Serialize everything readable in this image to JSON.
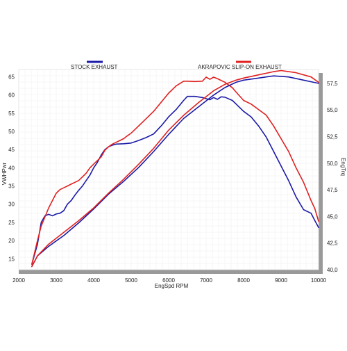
{
  "chart_data": {
    "type": "line",
    "legend_placement": "top",
    "grid": true,
    "colors": {
      "stock": "#1a1aa8",
      "akrapovic": "#e02020",
      "plot_border": "#999999",
      "grid": "#eeeeee"
    },
    "xlabel": "EngSpd  RPM",
    "ylabel_left": "VWHPwr",
    "ylabel_right": "EngTrq",
    "xlim": [
      2000,
      10000
    ],
    "ylim_left": [
      12,
      67
    ],
    "ylim_right": [
      40,
      58.8
    ],
    "x_ticks": [
      {
        "value": 2000,
        "label": "2000"
      },
      {
        "value": 3000,
        "label": "3000"
      },
      {
        "value": 4000,
        "label": "4000"
      },
      {
        "value": 5000,
        "label": "5000"
      },
      {
        "value": 6000,
        "label": "6000"
      },
      {
        "value": 7000,
        "label": "7000"
      },
      {
        "value": 8000,
        "label": "8000"
      },
      {
        "value": 9000,
        "label": "9000"
      },
      {
        "value": 10000,
        "label": "10000"
      }
    ],
    "y_left_ticks": [
      {
        "value": 15,
        "label": "15"
      },
      {
        "value": 20,
        "label": "20"
      },
      {
        "value": 25,
        "label": "25"
      },
      {
        "value": 30,
        "label": "30"
      },
      {
        "value": 35,
        "label": "35"
      },
      {
        "value": 40,
        "label": "40"
      },
      {
        "value": 45,
        "label": "45"
      },
      {
        "value": 50,
        "label": "50"
      },
      {
        "value": 55,
        "label": "55"
      },
      {
        "value": 60,
        "label": "60"
      },
      {
        "value": 65,
        "label": "65"
      }
    ],
    "y_right_ticks": [
      {
        "value": 40.0,
        "label": "40,0"
      },
      {
        "value": 42.5,
        "label": "42,5"
      },
      {
        "value": 45.0,
        "label": "45,0"
      },
      {
        "value": 47.5,
        "label": "47,5"
      },
      {
        "value": 50.0,
        "label": "50,0"
      },
      {
        "value": 52.5,
        "label": "52,5"
      },
      {
        "value": 55.0,
        "label": "55,0"
      },
      {
        "value": 57.5,
        "label": "57,5"
      }
    ],
    "legend": [
      {
        "key": "stock",
        "label": "STOCK EXHAUST"
      },
      {
        "key": "akrapovic",
        "label": "AKRAPOVIC SLIP-ON EXHAUST"
      }
    ],
    "series": [
      {
        "key": "stock",
        "quantity": "power",
        "axis": "left",
        "points": [
          [
            2350,
            13.5
          ],
          [
            2500,
            19
          ],
          [
            2600,
            25
          ],
          [
            2700,
            26.8
          ],
          [
            2800,
            27.2
          ],
          [
            2900,
            26.8
          ],
          [
            3000,
            27.3
          ],
          [
            3100,
            27.5
          ],
          [
            3200,
            28.2
          ],
          [
            3300,
            30
          ],
          [
            3400,
            31
          ],
          [
            3500,
            32.5
          ],
          [
            3600,
            33.8
          ],
          [
            3700,
            35
          ],
          [
            3800,
            36.5
          ],
          [
            3900,
            38
          ],
          [
            4000,
            40
          ],
          [
            4100,
            41.5
          ],
          [
            4200,
            43.5
          ],
          [
            4300,
            45
          ],
          [
            4400,
            45.8
          ],
          [
            4500,
            46.2
          ],
          [
            4600,
            46.5
          ],
          [
            4800,
            46.6
          ],
          [
            5000,
            46.8
          ],
          [
            5200,
            47.5
          ],
          [
            5400,
            48.3
          ],
          [
            5600,
            49.3
          ],
          [
            5800,
            51.5
          ],
          [
            6000,
            54
          ],
          [
            6200,
            56
          ],
          [
            6400,
            58.5
          ],
          [
            6500,
            59.6
          ],
          [
            6700,
            59.6
          ],
          [
            6900,
            59.3
          ],
          [
            7000,
            59
          ],
          [
            7100,
            58.7
          ],
          [
            7200,
            59.3
          ],
          [
            7300,
            58.8
          ],
          [
            7400,
            59.5
          ],
          [
            7500,
            59.4
          ],
          [
            7700,
            58.5
          ],
          [
            7800,
            57.5
          ],
          [
            8000,
            55.5
          ],
          [
            8200,
            54
          ],
          [
            8400,
            51.5
          ],
          [
            8600,
            48.5
          ],
          [
            8800,
            44.5
          ],
          [
            9000,
            40.5
          ],
          [
            9200,
            36.5
          ],
          [
            9400,
            32
          ],
          [
            9600,
            28.5
          ],
          [
            9800,
            27.5
          ],
          [
            9900,
            25.5
          ],
          [
            10000,
            23.6
          ]
        ]
      },
      {
        "key": "akrapovic",
        "quantity": "power",
        "axis": "left",
        "points": [
          [
            2350,
            13.5
          ],
          [
            2500,
            20
          ],
          [
            2600,
            24
          ],
          [
            2700,
            26.5
          ],
          [
            2800,
            29
          ],
          [
            2900,
            31
          ],
          [
            3000,
            33
          ],
          [
            3100,
            34
          ],
          [
            3200,
            34.5
          ],
          [
            3300,
            35
          ],
          [
            3400,
            35.5
          ],
          [
            3500,
            36
          ],
          [
            3600,
            36.5
          ],
          [
            3700,
            37.5
          ],
          [
            3800,
            38.5
          ],
          [
            3900,
            40
          ],
          [
            4000,
            41
          ],
          [
            4100,
            42
          ],
          [
            4200,
            43
          ],
          [
            4300,
            44.8
          ],
          [
            4400,
            45.8
          ],
          [
            4500,
            46.5
          ],
          [
            4600,
            47
          ],
          [
            4700,
            47.5
          ],
          [
            4800,
            48
          ],
          [
            4900,
            48.8
          ],
          [
            5000,
            49.5
          ],
          [
            5200,
            51.5
          ],
          [
            5400,
            53.5
          ],
          [
            5600,
            55.5
          ],
          [
            5800,
            58
          ],
          [
            6000,
            60.5
          ],
          [
            6200,
            62.5
          ],
          [
            6400,
            63.8
          ],
          [
            6500,
            63.8
          ],
          [
            6700,
            63.7
          ],
          [
            6900,
            63.8
          ],
          [
            7000,
            64.9
          ],
          [
            7100,
            64.3
          ],
          [
            7200,
            64.9
          ],
          [
            7300,
            64.5
          ],
          [
            7500,
            63.5
          ],
          [
            7700,
            62
          ],
          [
            7800,
            60.8
          ],
          [
            8000,
            58.5
          ],
          [
            8200,
            57.5
          ],
          [
            8400,
            56
          ],
          [
            8600,
            54.5
          ],
          [
            8800,
            51.5
          ],
          [
            9000,
            48
          ],
          [
            9200,
            44.5
          ],
          [
            9400,
            40
          ],
          [
            9600,
            36
          ],
          [
            9800,
            31
          ],
          [
            9900,
            28.8
          ],
          [
            10000,
            25.3
          ]
        ]
      },
      {
        "key": "stock",
        "quantity": "torque",
        "axis": "right",
        "points": [
          [
            2350,
            40.3
          ],
          [
            2500,
            41.3
          ],
          [
            2800,
            42.2
          ],
          [
            3200,
            43.2
          ],
          [
            3600,
            44.4
          ],
          [
            4000,
            45.7
          ],
          [
            4400,
            47.1
          ],
          [
            4800,
            48.3
          ],
          [
            5200,
            49.6
          ],
          [
            5600,
            51.1
          ],
          [
            6000,
            52.7
          ],
          [
            6400,
            54.2
          ],
          [
            6800,
            55.3
          ],
          [
            7200,
            56.4
          ],
          [
            7500,
            57.1
          ],
          [
            7800,
            57.6
          ],
          [
            8000,
            57.8
          ],
          [
            8400,
            58
          ],
          [
            8800,
            58.2
          ],
          [
            9200,
            58.1
          ],
          [
            9600,
            57.8
          ],
          [
            10000,
            57.5
          ]
        ]
      },
      {
        "key": "akrapovic",
        "quantity": "torque",
        "axis": "right",
        "points": [
          [
            2350,
            40.3
          ],
          [
            2500,
            41.3
          ],
          [
            2800,
            42.4
          ],
          [
            3200,
            43.5
          ],
          [
            3600,
            44.6
          ],
          [
            4000,
            45.8
          ],
          [
            4400,
            47.2
          ],
          [
            4800,
            48.5
          ],
          [
            5200,
            49.9
          ],
          [
            5600,
            51.4
          ],
          [
            6000,
            53.1
          ],
          [
            6400,
            54.5
          ],
          [
            6800,
            55.7
          ],
          [
            7200,
            56.8
          ],
          [
            7500,
            57.4
          ],
          [
            7800,
            57.8
          ],
          [
            8000,
            58
          ],
          [
            8400,
            58.3
          ],
          [
            8800,
            58.6
          ],
          [
            9000,
            58.7
          ],
          [
            9400,
            58.5
          ],
          [
            9800,
            58.1
          ],
          [
            10000,
            57.6
          ]
        ]
      }
    ]
  }
}
